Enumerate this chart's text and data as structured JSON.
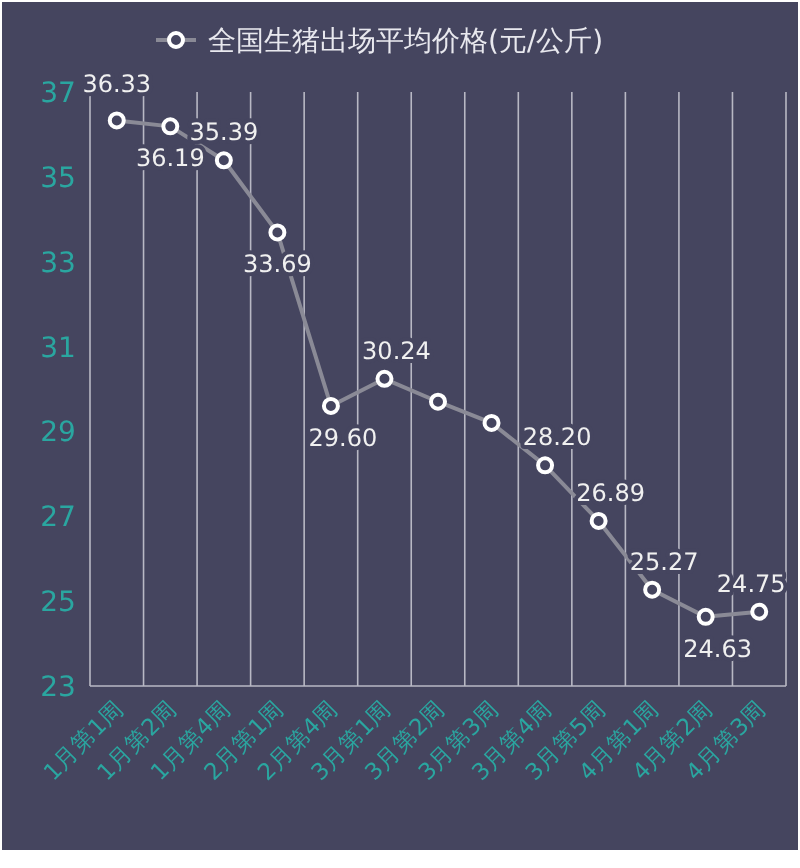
{
  "chart_data": {
    "type": "line",
    "categories": [
      "1月第1周",
      "1月第2周",
      "1月第4周",
      "2月第1周",
      "2月第4周",
      "3月第1周",
      "3月第2周",
      "3月第3周",
      "3月第4周",
      "3月第5周",
      "4月第1周",
      "4月第2周",
      "4月第3周"
    ],
    "series": [
      {
        "name": "全国生猪出场平均价格(元/公斤)",
        "color": "#8a8a96",
        "values": [
          36.33,
          36.19,
          35.39,
          33.69,
          29.6,
          30.24,
          29.7,
          29.2,
          28.2,
          26.89,
          25.27,
          24.63,
          24.75
        ],
        "value_labels": [
          "36.33",
          "36.19",
          "35.39",
          "33.69",
          "29.60",
          "30.24",
          null,
          null,
          "28.20",
          "26.89",
          "25.27",
          "24.63",
          "24.75"
        ]
      }
    ],
    "ylim": [
      23,
      37
    ],
    "yticks": [
      23,
      25,
      27,
      29,
      31,
      33,
      35,
      37
    ],
    "grid": "x",
    "legend": "top",
    "marker": "circle",
    "line_style": "solid"
  }
}
